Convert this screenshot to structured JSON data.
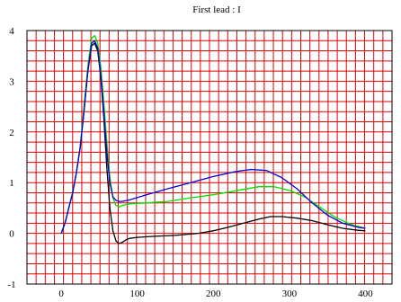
{
  "chart_data": {
    "type": "line",
    "title": "First lead : I",
    "xlabel": "",
    "ylabel": "",
    "xlim": [
      -45,
      435
    ],
    "ylim": [
      -1,
      4
    ],
    "x_ticks": [
      0,
      100,
      200,
      300,
      400
    ],
    "y_ticks": [
      -1,
      0,
      1,
      2,
      3,
      4
    ],
    "grid": true,
    "grid_color": "#e00000",
    "series": [
      {
        "color": "#000000",
        "points": [
          [
            0,
            0
          ],
          [
            5,
            0.2
          ],
          [
            10,
            0.5
          ],
          [
            15,
            0.8
          ],
          [
            20,
            1.2
          ],
          [
            25,
            1.7
          ],
          [
            30,
            2.4
          ],
          [
            35,
            3.2
          ],
          [
            40,
            3.7
          ],
          [
            44,
            3.75
          ],
          [
            48,
            3.6
          ],
          [
            52,
            3.1
          ],
          [
            56,
            2.3
          ],
          [
            60,
            1.3
          ],
          [
            64,
            0.5
          ],
          [
            68,
            0.05
          ],
          [
            72,
            -0.15
          ],
          [
            76,
            -0.2
          ],
          [
            80,
            -0.18
          ],
          [
            85,
            -0.13
          ],
          [
            90,
            -0.1
          ],
          [
            100,
            -0.08
          ],
          [
            120,
            -0.06
          ],
          [
            150,
            -0.04
          ],
          [
            180,
            0.0
          ],
          [
            200,
            0.05
          ],
          [
            220,
            0.12
          ],
          [
            240,
            0.2
          ],
          [
            260,
            0.28
          ],
          [
            275,
            0.33
          ],
          [
            290,
            0.33
          ],
          [
            310,
            0.3
          ],
          [
            330,
            0.25
          ],
          [
            350,
            0.17
          ],
          [
            370,
            0.1
          ],
          [
            390,
            0.06
          ],
          [
            400,
            0.05
          ]
        ]
      },
      {
        "color": "#00dd00",
        "points": [
          [
            0,
            0
          ],
          [
            5,
            0.2
          ],
          [
            10,
            0.5
          ],
          [
            15,
            0.8
          ],
          [
            20,
            1.2
          ],
          [
            25,
            1.7
          ],
          [
            30,
            2.5
          ],
          [
            35,
            3.3
          ],
          [
            40,
            3.85
          ],
          [
            44,
            3.9
          ],
          [
            48,
            3.75
          ],
          [
            52,
            3.3
          ],
          [
            56,
            2.6
          ],
          [
            60,
            1.8
          ],
          [
            64,
            1.1
          ],
          [
            68,
            0.7
          ],
          [
            72,
            0.55
          ],
          [
            76,
            0.52
          ],
          [
            80,
            0.55
          ],
          [
            90,
            0.58
          ],
          [
            110,
            0.6
          ],
          [
            140,
            0.63
          ],
          [
            170,
            0.7
          ],
          [
            200,
            0.76
          ],
          [
            230,
            0.84
          ],
          [
            260,
            0.92
          ],
          [
            280,
            0.92
          ],
          [
            300,
            0.85
          ],
          [
            320,
            0.72
          ],
          [
            340,
            0.52
          ],
          [
            360,
            0.32
          ],
          [
            380,
            0.18
          ],
          [
            400,
            0.1
          ]
        ]
      },
      {
        "color": "#0000dd",
        "points": [
          [
            0,
            0
          ],
          [
            5,
            0.2
          ],
          [
            10,
            0.5
          ],
          [
            15,
            0.8
          ],
          [
            20,
            1.2
          ],
          [
            25,
            1.7
          ],
          [
            30,
            2.4
          ],
          [
            35,
            3.2
          ],
          [
            40,
            3.75
          ],
          [
            44,
            3.8
          ],
          [
            48,
            3.65
          ],
          [
            52,
            3.15
          ],
          [
            56,
            2.4
          ],
          [
            60,
            1.6
          ],
          [
            64,
            1.0
          ],
          [
            68,
            0.72
          ],
          [
            72,
            0.65
          ],
          [
            76,
            0.63
          ],
          [
            80,
            0.63
          ],
          [
            90,
            0.66
          ],
          [
            110,
            0.75
          ],
          [
            140,
            0.88
          ],
          [
            170,
            1.0
          ],
          [
            200,
            1.12
          ],
          [
            230,
            1.22
          ],
          [
            250,
            1.26
          ],
          [
            270,
            1.24
          ],
          [
            290,
            1.1
          ],
          [
            310,
            0.88
          ],
          [
            330,
            0.6
          ],
          [
            350,
            0.36
          ],
          [
            370,
            0.2
          ],
          [
            390,
            0.12
          ],
          [
            400,
            0.1
          ]
        ]
      }
    ]
  }
}
